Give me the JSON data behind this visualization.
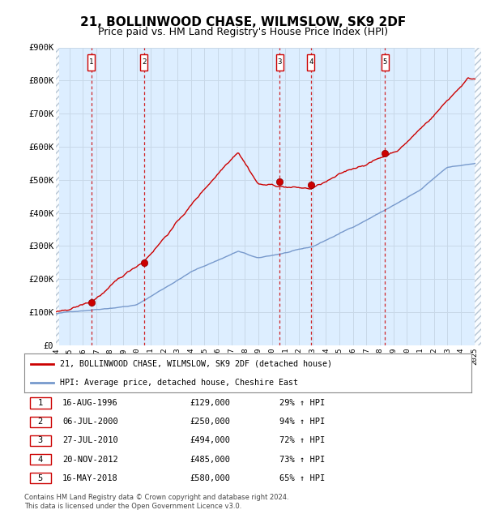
{
  "title": "21, BOLLINWOOD CHASE, WILMSLOW, SK9 2DF",
  "subtitle": "Price paid vs. HM Land Registry's House Price Index (HPI)",
  "legend_label_red": "21, BOLLINWOOD CHASE, WILMSLOW, SK9 2DF (detached house)",
  "legend_label_blue": "HPI: Average price, detached house, Cheshire East",
  "footer1": "Contains HM Land Registry data © Crown copyright and database right 2024.",
  "footer2": "This data is licensed under the Open Government Licence v3.0.",
  "sales": [
    {
      "num": 1,
      "date_str": "16-AUG-1996",
      "date_x": 1996.625,
      "price": 129000,
      "pct": "29%",
      "arrow": "↑"
    },
    {
      "num": 2,
      "date_str": "06-JUL-2000",
      "date_x": 2000.51,
      "price": 250000,
      "pct": "94%",
      "arrow": "↑"
    },
    {
      "num": 3,
      "date_str": "27-JUL-2010",
      "date_x": 2010.57,
      "price": 494000,
      "pct": "72%",
      "arrow": "↑"
    },
    {
      "num": 4,
      "date_str": "20-NOV-2012",
      "date_x": 2012.89,
      "price": 485000,
      "pct": "73%",
      "arrow": "↑"
    },
    {
      "num": 5,
      "date_str": "16-MAY-2018",
      "date_x": 2018.37,
      "price": 580000,
      "pct": "65%",
      "arrow": "↑"
    }
  ],
  "xlim": [
    1994.0,
    2025.5
  ],
  "ylim": [
    0,
    900000
  ],
  "yticks": [
    0,
    100000,
    200000,
    300000,
    400000,
    500000,
    600000,
    700000,
    800000,
    900000
  ],
  "ytick_labels": [
    "£0",
    "£100K",
    "£200K",
    "£300K",
    "£400K",
    "£500K",
    "£600K",
    "£700K",
    "£800K",
    "£900K"
  ],
  "xticks": [
    1994,
    1995,
    1996,
    1997,
    1998,
    1999,
    2000,
    2001,
    2002,
    2003,
    2004,
    2005,
    2006,
    2007,
    2008,
    2009,
    2010,
    2011,
    2012,
    2013,
    2014,
    2015,
    2016,
    2017,
    2018,
    2019,
    2020,
    2021,
    2022,
    2023,
    2024,
    2025
  ],
  "data_start_x": 1994.25,
  "data_end_x": 2025.0,
  "red_color": "#cc0000",
  "blue_color": "#7799cc",
  "grid_color": "#c8d8e8",
  "bg_color": "#ddeeff",
  "hatch_color": "#aabbcc",
  "title_fontsize": 11,
  "subtitle_fontsize": 9,
  "axis_fontsize": 7.5
}
